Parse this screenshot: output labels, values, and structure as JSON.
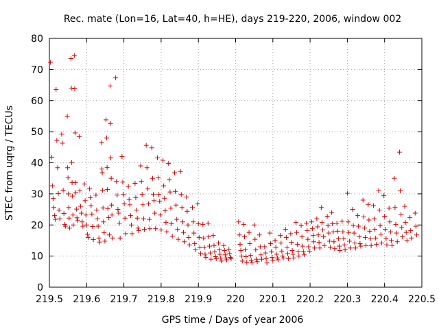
{
  "chart_data": {
    "type": "scatter",
    "title": "Rec. mate (Lon=16, Lat=40, h=HE), days 219-220, 2006, window 002",
    "xlabel": "GPS time / Days of year 2006",
    "ylabel": "STEC from uqrg / TECUs",
    "xlim": [
      219.5,
      220.5
    ],
    "ylim": [
      0,
      80
    ],
    "xticks": [
      "219.5",
      "219.6",
      "219.7",
      "219.8",
      "219.9",
      "220",
      "220.1",
      "220.2",
      "220.3",
      "220.4",
      "220.5"
    ],
    "yticks": [
      "0",
      "10",
      "20",
      "30",
      "40",
      "50",
      "60",
      "70",
      "80"
    ],
    "grid": true,
    "marker": "plus",
    "color": "#cc0000",
    "points": [
      [
        219.503,
        72.3
      ],
      [
        219.506,
        41.8
      ],
      [
        219.508,
        32.6
      ],
      [
        219.51,
        28.5
      ],
      [
        219.512,
        25.6
      ],
      [
        219.514,
        23.0
      ],
      [
        219.516,
        21.8
      ],
      [
        219.518,
        63.6
      ],
      [
        219.52,
        47.2
      ],
      [
        219.522,
        38.4
      ],
      [
        219.524,
        30.1
      ],
      [
        219.526,
        24.8
      ],
      [
        219.528,
        22.0
      ],
      [
        219.533,
        49.2
      ],
      [
        219.535,
        46.3
      ],
      [
        219.537,
        31.2
      ],
      [
        219.539,
        23.7
      ],
      [
        219.541,
        20.2
      ],
      [
        219.543,
        19.6
      ],
      [
        219.548,
        55.0
      ],
      [
        219.549,
        38.4
      ],
      [
        219.55,
        35.2
      ],
      [
        219.551,
        30.0
      ],
      [
        219.552,
        25.6
      ],
      [
        219.553,
        22.2
      ],
      [
        219.554,
        19.0
      ],
      [
        219.558,
        73.5
      ],
      [
        219.559,
        64.0
      ],
      [
        219.56,
        40.1
      ],
      [
        219.561,
        33.6
      ],
      [
        219.562,
        29.3
      ],
      [
        219.563,
        23.2
      ],
      [
        219.564,
        20.0
      ],
      [
        219.567,
        74.5
      ],
      [
        219.568,
        63.8
      ],
      [
        219.569,
        49.6
      ],
      [
        219.57,
        33.6
      ],
      [
        219.571,
        30.4
      ],
      [
        219.573,
        25.1
      ],
      [
        219.574,
        22.3
      ],
      [
        219.576,
        21.4
      ],
      [
        219.58,
        48.4
      ],
      [
        219.582,
        31.0
      ],
      [
        219.584,
        26.0
      ],
      [
        219.586,
        23.8
      ],
      [
        219.588,
        21.0
      ],
      [
        219.59,
        19.6
      ],
      [
        219.594,
        33.2
      ],
      [
        219.596,
        27.8
      ],
      [
        219.598,
        23.2
      ],
      [
        219.6,
        20.0
      ],
      [
        219.602,
        17.0
      ],
      [
        219.604,
        16.0
      ],
      [
        219.608,
        31.6
      ],
      [
        219.61,
        28.8
      ],
      [
        219.612,
        26.2
      ],
      [
        219.614,
        23.5
      ],
      [
        219.616,
        19.5
      ],
      [
        219.618,
        15.3
      ],
      [
        219.625,
        29.6
      ],
      [
        219.627,
        24.8
      ],
      [
        219.629,
        22.0
      ],
      [
        219.631,
        19.6
      ],
      [
        219.633,
        15.8
      ],
      [
        219.635,
        14.5
      ],
      [
        219.64,
        46.5
      ],
      [
        219.641,
        38.0
      ],
      [
        219.642,
        36.8
      ],
      [
        219.643,
        31.2
      ],
      [
        219.644,
        25.5
      ],
      [
        219.645,
        21.0
      ],
      [
        219.647,
        17.5
      ],
      [
        219.649,
        14.8
      ],
      [
        219.652,
        53.8
      ],
      [
        219.654,
        48.0
      ],
      [
        219.655,
        38.5
      ],
      [
        219.656,
        31.4
      ],
      [
        219.657,
        25.3
      ],
      [
        219.659,
        22.4
      ],
      [
        219.661,
        16.8
      ],
      [
        219.663,
        64.7
      ],
      [
        219.664,
        52.6
      ],
      [
        219.665,
        41.6
      ],
      [
        219.666,
        35.0
      ],
      [
        219.667,
        26.4
      ],
      [
        219.668,
        23.2
      ],
      [
        219.67,
        15.8
      ],
      [
        219.678,
        67.3
      ],
      [
        219.68,
        34.0
      ],
      [
        219.682,
        29.6
      ],
      [
        219.684,
        25.0
      ],
      [
        219.686,
        23.8
      ],
      [
        219.688,
        20.6
      ],
      [
        219.69,
        15.8
      ],
      [
        219.695,
        42.0
      ],
      [
        219.697,
        33.8
      ],
      [
        219.699,
        29.8
      ],
      [
        219.701,
        26.8
      ],
      [
        219.703,
        22.2
      ],
      [
        219.705,
        17.2
      ],
      [
        219.712,
        32.4
      ],
      [
        219.714,
        28.2
      ],
      [
        219.716,
        26.5
      ],
      [
        219.718,
        23.0
      ],
      [
        219.72,
        20.0
      ],
      [
        219.722,
        17.2
      ],
      [
        219.73,
        33.4
      ],
      [
        219.732,
        28.8
      ],
      [
        219.734,
        24.8
      ],
      [
        219.736,
        22.2
      ],
      [
        219.738,
        19.0
      ],
      [
        219.74,
        18.2
      ],
      [
        219.745,
        39.0
      ],
      [
        219.747,
        34.0
      ],
      [
        219.749,
        29.8
      ],
      [
        219.751,
        26.5
      ],
      [
        219.753,
        22.0
      ],
      [
        219.755,
        18.6
      ],
      [
        219.76,
        45.6
      ],
      [
        219.762,
        38.4
      ],
      [
        219.764,
        31.6
      ],
      [
        219.766,
        26.8
      ],
      [
        219.768,
        21.8
      ],
      [
        219.77,
        18.8
      ],
      [
        219.775,
        44.8
      ],
      [
        219.777,
        35.0
      ],
      [
        219.779,
        29.8
      ],
      [
        219.781,
        27.8
      ],
      [
        219.783,
        23.8
      ],
      [
        219.785,
        18.8
      ],
      [
        219.79,
        41.6
      ],
      [
        219.792,
        35.2
      ],
      [
        219.794,
        29.8
      ],
      [
        219.796,
        27.6
      ],
      [
        219.798,
        23.2
      ],
      [
        219.8,
        18.4
      ],
      [
        219.805,
        40.8
      ],
      [
        219.807,
        32.6
      ],
      [
        219.809,
        28.6
      ],
      [
        219.811,
        24.6
      ],
      [
        219.813,
        20.8
      ],
      [
        219.815,
        17.8
      ],
      [
        219.82,
        39.8
      ],
      [
        219.822,
        34.6
      ],
      [
        219.824,
        30.6
      ],
      [
        219.826,
        25.4
      ],
      [
        219.828,
        20.4
      ],
      [
        219.83,
        16.4
      ],
      [
        219.836,
        36.8
      ],
      [
        219.838,
        30.8
      ],
      [
        219.84,
        26.4
      ],
      [
        219.842,
        21.8
      ],
      [
        219.844,
        18.6
      ],
      [
        219.846,
        15.4
      ],
      [
        219.852,
        37.2
      ],
      [
        219.854,
        29.8
      ],
      [
        219.856,
        25.6
      ],
      [
        219.858,
        21.0
      ],
      [
        219.86,
        17.6
      ],
      [
        219.862,
        14.6
      ],
      [
        219.868,
        29.0
      ],
      [
        219.87,
        24.4
      ],
      [
        219.872,
        20.0
      ],
      [
        219.874,
        16.0
      ],
      [
        219.876,
        13.6
      ],
      [
        219.884,
        25.6
      ],
      [
        219.886,
        21.0
      ],
      [
        219.888,
        17.4
      ],
      [
        219.89,
        14.0
      ],
      [
        219.892,
        12.0
      ],
      [
        219.898,
        26.8
      ],
      [
        219.9,
        20.4
      ],
      [
        219.902,
        16.0
      ],
      [
        219.904,
        12.8
      ],
      [
        219.906,
        10.8
      ],
      [
        219.912,
        20.2
      ],
      [
        219.914,
        15.8
      ],
      [
        219.916,
        12.8
      ],
      [
        219.918,
        10.6
      ],
      [
        219.92,
        9.6
      ],
      [
        219.926,
        20.6
      ],
      [
        219.928,
        16.2
      ],
      [
        219.93,
        13.2
      ],
      [
        219.932,
        11.0
      ],
      [
        219.934,
        9.0
      ],
      [
        219.94,
        16.6
      ],
      [
        219.942,
        13.4
      ],
      [
        219.944,
        11.4
      ],
      [
        219.946,
        9.8
      ],
      [
        219.948,
        9.2
      ],
      [
        219.954,
        14.2
      ],
      [
        219.956,
        12.0
      ],
      [
        219.958,
        10.6
      ],
      [
        219.96,
        9.4
      ],
      [
        219.962,
        8.4
      ],
      [
        219.968,
        13.4
      ],
      [
        219.97,
        11.8
      ],
      [
        219.972,
        10.4
      ],
      [
        219.974,
        9.4
      ],
      [
        219.976,
        8.8
      ],
      [
        219.982,
        12.2
      ],
      [
        219.984,
        10.8
      ],
      [
        219.986,
        9.6
      ],
      [
        219.988,
        9.2
      ],
      [
        220.008,
        21.0
      ],
      [
        220.01,
        16.8
      ],
      [
        220.012,
        13.8
      ],
      [
        220.014,
        11.8
      ],
      [
        220.016,
        10.0
      ],
      [
        220.018,
        8.4
      ],
      [
        220.022,
        20.2
      ],
      [
        220.024,
        16.2
      ],
      [
        220.026,
        12.0
      ],
      [
        220.028,
        9.8
      ],
      [
        220.03,
        8.0
      ],
      [
        220.036,
        17.6
      ],
      [
        220.038,
        14.0
      ],
      [
        220.04,
        10.2
      ],
      [
        220.042,
        8.6
      ],
      [
        220.044,
        7.8
      ],
      [
        220.05,
        20.0
      ],
      [
        220.052,
        15.4
      ],
      [
        220.054,
        12.0
      ],
      [
        220.056,
        9.0
      ],
      [
        220.058,
        8.2
      ],
      [
        220.064,
        16.8
      ],
      [
        220.066,
        13.0
      ],
      [
        220.068,
        10.4
      ],
      [
        220.07,
        9.0
      ],
      [
        220.078,
        13.0
      ],
      [
        220.08,
        11.0
      ],
      [
        220.082,
        9.2
      ],
      [
        220.084,
        7.8
      ],
      [
        220.092,
        17.4
      ],
      [
        220.094,
        14.0
      ],
      [
        220.096,
        11.4
      ],
      [
        220.098,
        9.6
      ],
      [
        220.1,
        8.6
      ],
      [
        220.106,
        15.0
      ],
      [
        220.108,
        12.8
      ],
      [
        220.11,
        10.6
      ],
      [
        220.112,
        9.4
      ],
      [
        220.114,
        8.8
      ],
      [
        220.12,
        16.6
      ],
      [
        220.122,
        14.2
      ],
      [
        220.124,
        11.6
      ],
      [
        220.126,
        10.0
      ],
      [
        220.128,
        9.4
      ],
      [
        220.134,
        18.6
      ],
      [
        220.136,
        16.0
      ],
      [
        220.138,
        12.8
      ],
      [
        220.14,
        10.8
      ],
      [
        220.142,
        9.2
      ],
      [
        220.148,
        17.2
      ],
      [
        220.15,
        14.4
      ],
      [
        220.152,
        11.8
      ],
      [
        220.154,
        10.6
      ],
      [
        220.156,
        9.4
      ],
      [
        220.162,
        20.8
      ],
      [
        220.164,
        17.6
      ],
      [
        220.166,
        13.8
      ],
      [
        220.168,
        11.4
      ],
      [
        220.17,
        10.0
      ],
      [
        220.176,
        19.8
      ],
      [
        220.178,
        16.2
      ],
      [
        220.18,
        13.2
      ],
      [
        220.182,
        11.4
      ],
      [
        220.184,
        10.4
      ],
      [
        220.19,
        20.6
      ],
      [
        220.192,
        18.2
      ],
      [
        220.194,
        15.4
      ],
      [
        220.196,
        13.0
      ],
      [
        220.198,
        11.6
      ],
      [
        220.204,
        21.0
      ],
      [
        220.206,
        18.8
      ],
      [
        220.208,
        16.6
      ],
      [
        220.21,
        14.6
      ],
      [
        220.212,
        12.6
      ],
      [
        220.218,
        22.0
      ],
      [
        220.22,
        19.4
      ],
      [
        220.222,
        16.8
      ],
      [
        220.224,
        14.4
      ],
      [
        220.226,
        12.6
      ],
      [
        220.23,
        25.6
      ],
      [
        220.232,
        20.8
      ],
      [
        220.234,
        18.4
      ],
      [
        220.236,
        16.2
      ],
      [
        220.238,
        13.4
      ],
      [
        220.246,
        22.8
      ],
      [
        220.248,
        19.8
      ],
      [
        220.25,
        17.4
      ],
      [
        220.252,
        14.8
      ],
      [
        220.254,
        12.8
      ],
      [
        220.258,
        24.0
      ],
      [
        220.26,
        20.4
      ],
      [
        220.262,
        17.8
      ],
      [
        220.264,
        14.6
      ],
      [
        220.266,
        12.4
      ],
      [
        220.272,
        20.6
      ],
      [
        220.274,
        18.0
      ],
      [
        220.276,
        15.6
      ],
      [
        220.278,
        13.2
      ],
      [
        220.28,
        11.8
      ],
      [
        220.286,
        21.2
      ],
      [
        220.288,
        17.8
      ],
      [
        220.29,
        15.6
      ],
      [
        220.292,
        13.6
      ],
      [
        220.294,
        12.0
      ],
      [
        220.3,
        30.2
      ],
      [
        220.302,
        21.0
      ],
      [
        220.304,
        17.6
      ],
      [
        220.306,
        14.8
      ],
      [
        220.308,
        12.6
      ],
      [
        220.314,
        25.0
      ],
      [
        220.316,
        19.8
      ],
      [
        220.318,
        17.4
      ],
      [
        220.32,
        14.2
      ],
      [
        220.322,
        12.6
      ],
      [
        220.328,
        23.0
      ],
      [
        220.33,
        19.6
      ],
      [
        220.332,
        16.2
      ],
      [
        220.334,
        14.0
      ],
      [
        220.336,
        13.2
      ],
      [
        220.342,
        28.0
      ],
      [
        220.344,
        22.6
      ],
      [
        220.346,
        19.0
      ],
      [
        220.348,
        16.0
      ],
      [
        220.35,
        13.4
      ],
      [
        220.356,
        26.6
      ],
      [
        220.358,
        21.6
      ],
      [
        220.36,
        18.0
      ],
      [
        220.362,
        15.6
      ],
      [
        220.364,
        13.4
      ],
      [
        220.37,
        26.2
      ],
      [
        220.372,
        22.0
      ],
      [
        220.374,
        18.6
      ],
      [
        220.376,
        15.8
      ],
      [
        220.378,
        13.8
      ],
      [
        220.384,
        31.0
      ],
      [
        220.386,
        24.8
      ],
      [
        220.388,
        19.8
      ],
      [
        220.39,
        17.0
      ],
      [
        220.392,
        14.2
      ],
      [
        220.398,
        29.4
      ],
      [
        220.4,
        22.8
      ],
      [
        220.402,
        18.6
      ],
      [
        220.404,
        15.6
      ],
      [
        220.406,
        13.6
      ],
      [
        220.412,
        25.4
      ],
      [
        220.414,
        21.0
      ],
      [
        220.416,
        17.8
      ],
      [
        220.418,
        15.0
      ],
      [
        220.42,
        13.4
      ],
      [
        220.426,
        35.0
      ],
      [
        220.428,
        25.6
      ],
      [
        220.43,
        20.2
      ],
      [
        220.432,
        17.4
      ],
      [
        220.434,
        14.6
      ],
      [
        220.44,
        43.4
      ],
      [
        220.442,
        31.0
      ],
      [
        220.444,
        23.4
      ],
      [
        220.446,
        19.2
      ],
      [
        220.448,
        16.2
      ],
      [
        220.454,
        26.0
      ],
      [
        220.456,
        20.8
      ],
      [
        220.458,
        17.6
      ],
      [
        220.46,
        15.0
      ],
      [
        220.468,
        22.4
      ],
      [
        220.47,
        18.2
      ],
      [
        220.472,
        15.8
      ],
      [
        220.482,
        23.8
      ],
      [
        220.484,
        19.6
      ],
      [
        220.486,
        16.8
      ]
    ]
  }
}
